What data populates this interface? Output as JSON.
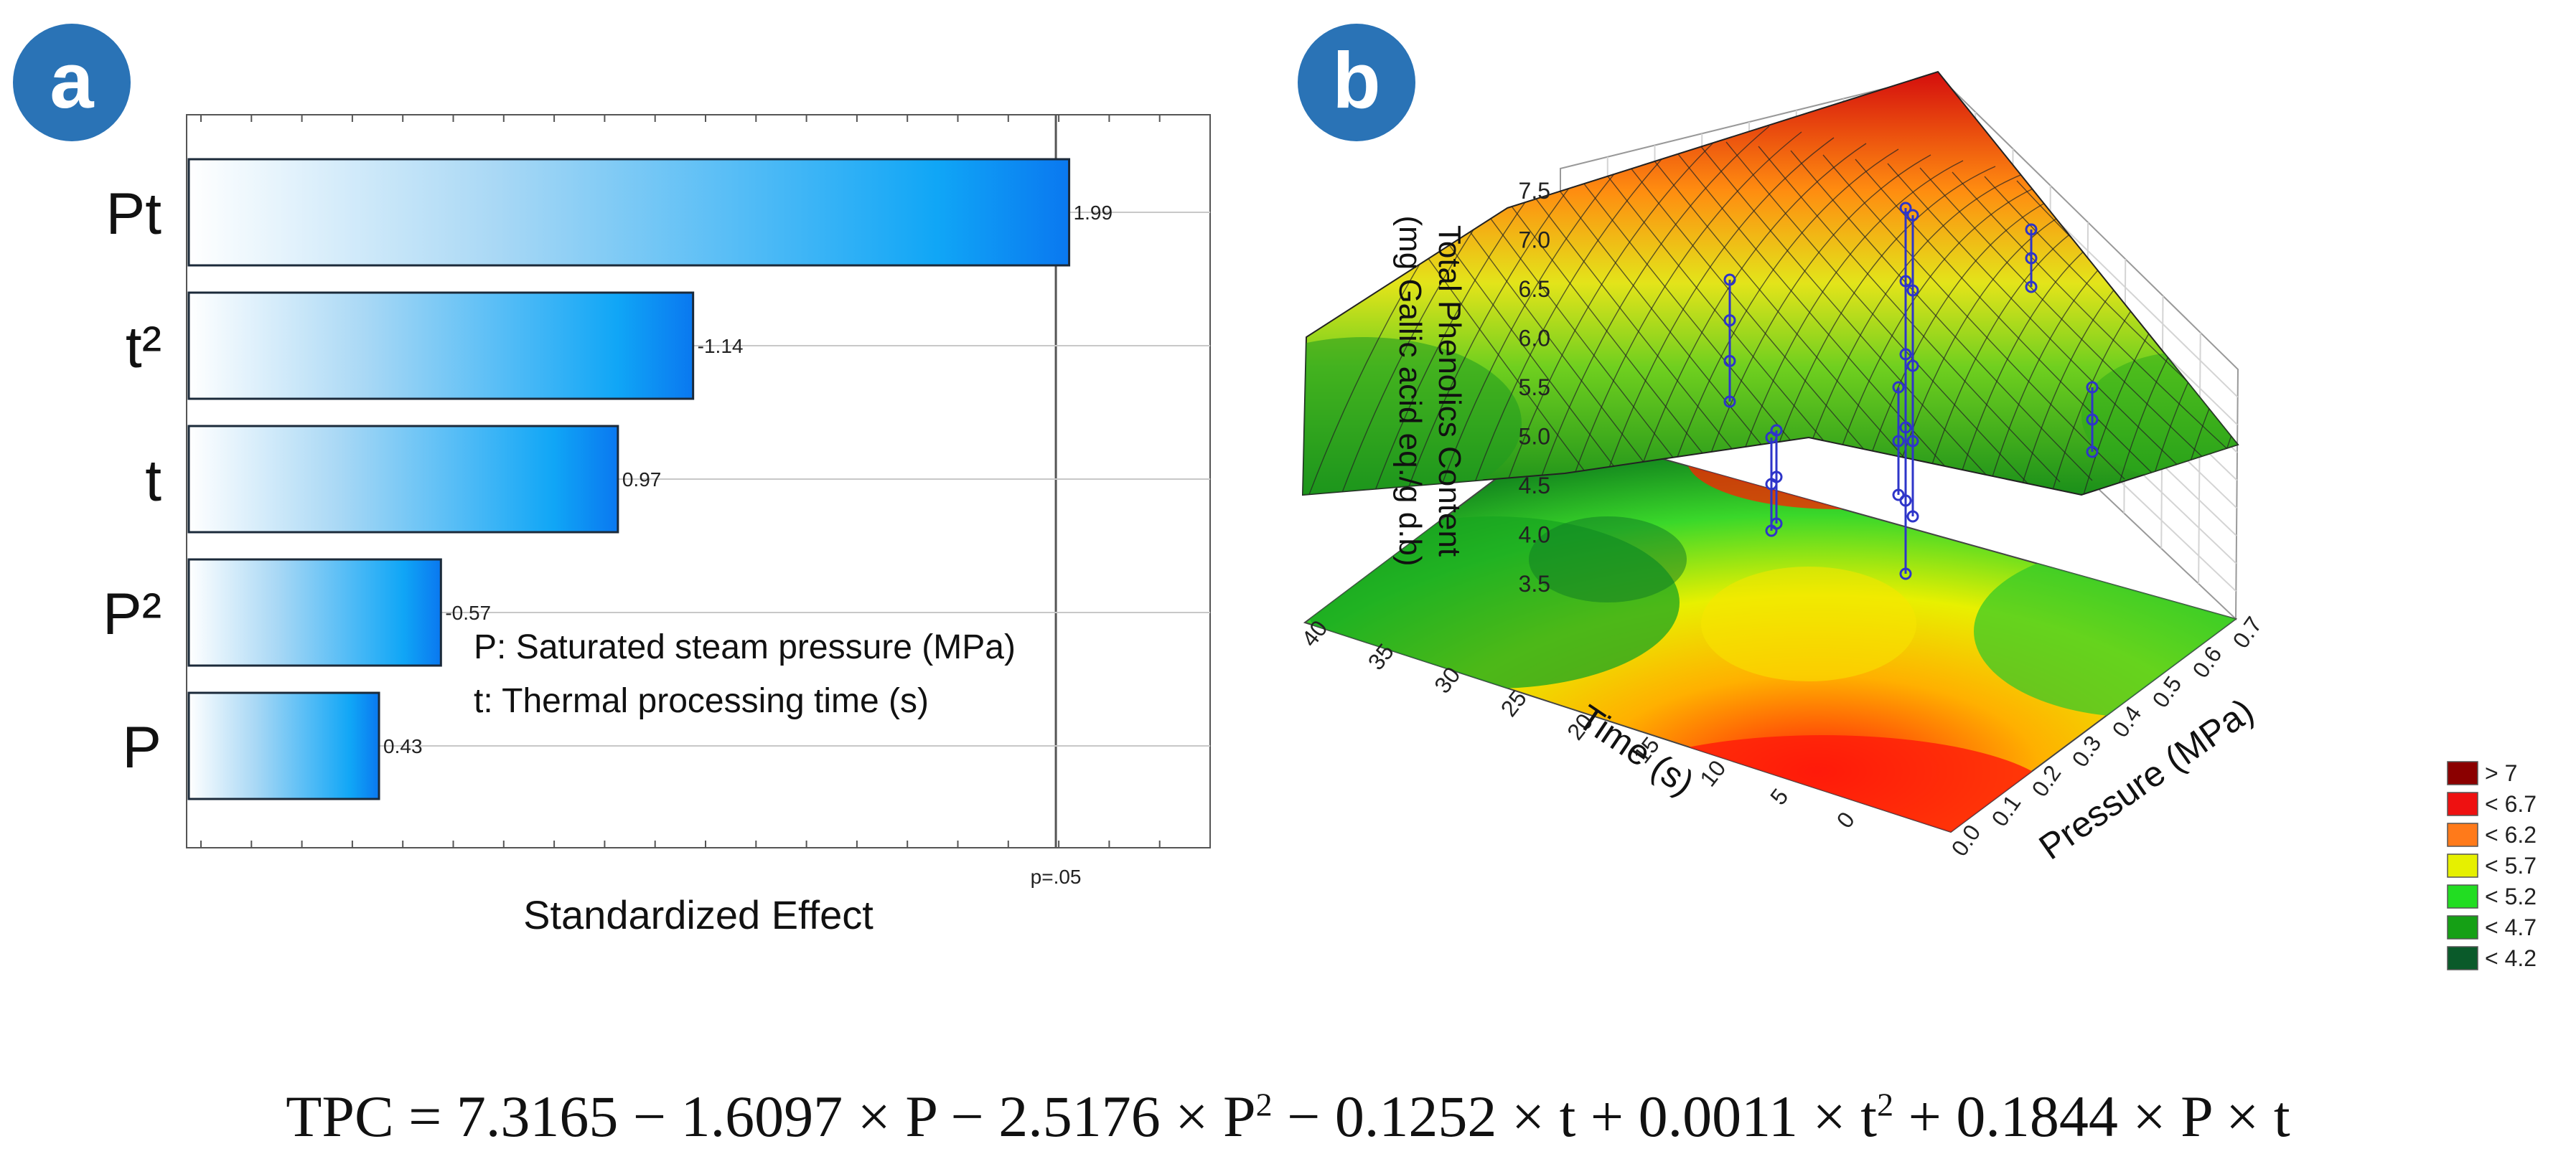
{
  "panel_labels": {
    "a": "a",
    "b": "b"
  },
  "colors": {
    "badge": "#2a73b6",
    "bar_dark": "#0a78f0",
    "bar_light": "#eaf4fc"
  },
  "chart_data": [
    {
      "type": "bar",
      "orientation": "horizontal",
      "title": "",
      "xlabel": "Standardized Effect",
      "ylabel": "",
      "categories": [
        "Pt",
        "t²",
        "t",
        "P²",
        "P"
      ],
      "values": [
        1.99,
        -1.14,
        0.97,
        -0.57,
        0.43
      ],
      "value_labels": [
        "1.99",
        "-1.14",
        "0.97",
        "-0.57",
        "0.43"
      ],
      "xlim": [
        0,
        2.2
      ],
      "reference_line": {
        "value": 1.96,
        "label": "p=.05"
      },
      "grid": true,
      "annotations": [
        "P: Saturated steam pressure (MPa)",
        "t: Thermal processing time (s)"
      ]
    },
    {
      "type": "surface3d",
      "title": "",
      "zlabel_line1": "Total Phenolics Content",
      "zlabel_line2": "(mg Gallic acid eq./g d.b)",
      "xlabel": "Pressure (MPa)",
      "ylabel": "Time (s)",
      "x_ticks": [
        "0.0",
        "0.1",
        "0.2",
        "0.3",
        "0.4",
        "0.5",
        "0.6",
        "0.7"
      ],
      "y_ticks": [
        "0",
        "5",
        "10",
        "15",
        "20",
        "25",
        "30",
        "35",
        "40"
      ],
      "z_ticks": [
        "3.5",
        "4.0",
        "4.5",
        "5.0",
        "5.5",
        "6.0",
        "6.5",
        "7.0",
        "7.5"
      ],
      "xlim": [
        0.0,
        0.7
      ],
      "ylim": [
        0,
        40
      ],
      "zlim": [
        3.5,
        7.5
      ],
      "legend": [
        {
          "label": "> 7",
          "color": "#8b0000"
        },
        {
          "label": "< 6.7",
          "color": "#ee1111"
        },
        {
          "label": "< 6.2",
          "color": "#ff7a1a"
        },
        {
          "label": "< 5.7",
          "color": "#e6f000"
        },
        {
          "label": "< 5.2",
          "color": "#22dd22"
        },
        {
          "label": "< 4.7",
          "color": "#15a015"
        },
        {
          "label": "< 4.2",
          "color": "#0a5a2a"
        }
      ]
    }
  ],
  "equation": {
    "p1": "TPC = 7.3165 − 1.6097 × P − 2.5176 × P",
    "s1": "2",
    "p2": " − 0.1252 × t + 0.0011 × t",
    "s2": "2",
    "p3": " + 0.1844 × P × t"
  }
}
